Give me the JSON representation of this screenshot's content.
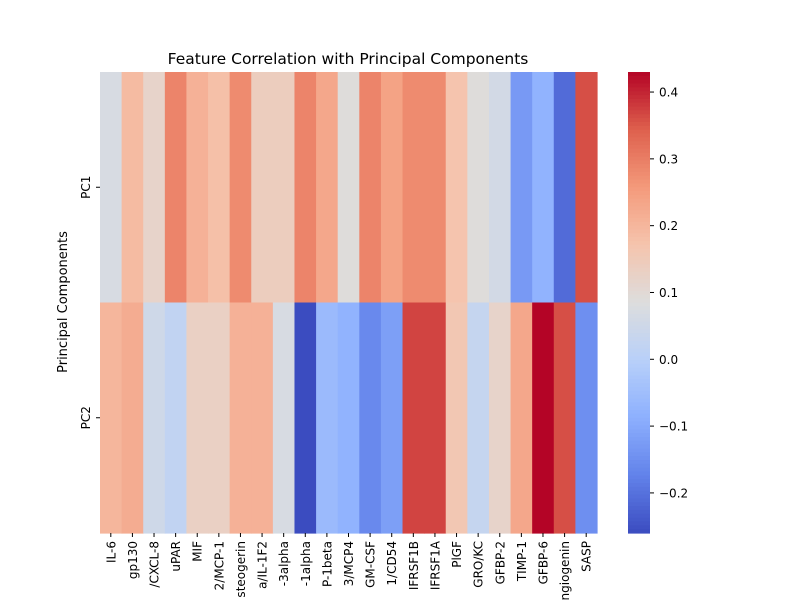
{
  "chart_data": {
    "type": "heatmap",
    "title": "Feature Correlation with Principal Components",
    "ylabel": "Principal Components",
    "xlabel": "",
    "colormap": "coolwarm",
    "x_labels": [
      "IL-6",
      "gp130",
      "/CXCL-8",
      "uPAR",
      "MIF",
      "2/MCP-1",
      "steogerin",
      "a/IL-1F2",
      "-3alpha",
      "-1alpha",
      "P-1beta",
      "3/MCP4",
      "GM-CSF",
      "1/CD54",
      "IFRSF1B",
      "IFRSF1A",
      "PlGF",
      "GRO/KC",
      "GFBP-2",
      "TIMP-1",
      "GFBP-6",
      "ngiogenin",
      "SASP"
    ],
    "y_labels": [
      "PC1",
      "PC2"
    ],
    "values": [
      [
        0.07,
        0.19,
        0.12,
        0.29,
        0.21,
        0.18,
        0.28,
        0.14,
        0.14,
        0.29,
        0.23,
        0.09,
        0.29,
        0.24,
        0.28,
        0.28,
        0.17,
        0.09,
        0.06,
        -0.13,
        -0.08,
        -0.21,
        0.36
      ],
      [
        0.2,
        0.22,
        0.05,
        0.02,
        0.13,
        0.13,
        0.21,
        0.21,
        0.07,
        -0.26,
        -0.06,
        -0.08,
        -0.16,
        -0.12,
        0.37,
        0.37,
        0.16,
        0.03,
        0.12,
        0.23,
        0.43,
        0.36,
        -0.15
      ]
    ],
    "colorbar": {
      "vmin": -0.26,
      "vmax": 0.43,
      "ticks": [
        -0.2,
        -0.1,
        0.0,
        0.1,
        0.2,
        0.3,
        0.4
      ],
      "tick_labels": [
        "−0.2",
        "−0.1",
        "0.0",
        "0.1",
        "0.2",
        "0.3",
        "0.4"
      ]
    }
  }
}
